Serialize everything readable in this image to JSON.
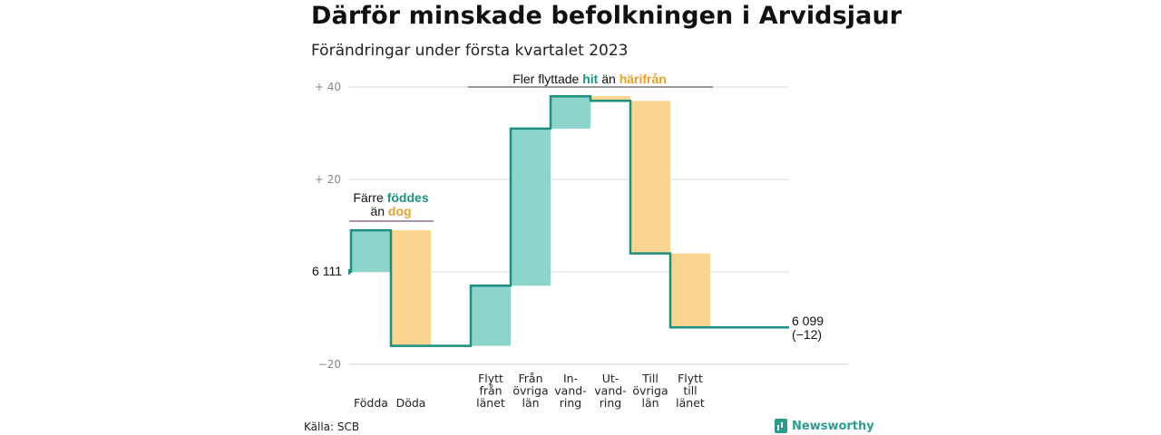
{
  "title": "Därför minskade befolkningen i Arvidsjaur",
  "subtitle": "Förändringar under första kvartalet 2023",
  "source": "Källa: SCB",
  "brand": "Newsworthy",
  "colors": {
    "increase": "#8dd5cc",
    "decrease": "#fad58f",
    "line": "#1b8f80",
    "teal_text": "#1b9484",
    "orange_text": "#e8a02a"
  },
  "start_label": "6 111",
  "end_label": [
    "6 099",
    "(−12)"
  ],
  "annotation_births": {
    "line1_prefix": "Färre ",
    "line1_highlight": "föddes",
    "line2_prefix": "än ",
    "line2_highlight": "dog"
  },
  "annotation_moves": {
    "prefix": "Fler flyttade ",
    "highlight1": "hit",
    "middle": " än ",
    "highlight2": "härifrån"
  },
  "chart_data": {
    "type": "waterfall",
    "start_value": 6111,
    "end_value": 6099,
    "net_change": -12,
    "y_tick_labels": [
      "+ 40",
      "+ 20",
      "−20"
    ],
    "ylim": [
      -20,
      40
    ],
    "steps": [
      {
        "category": [
          "Födda"
        ],
        "change": 9,
        "kind": "increase",
        "group": 0
      },
      {
        "category": [
          "Döda"
        ],
        "change": -25,
        "kind": "decrease",
        "group": 0
      },
      {
        "category": [
          "Flytt",
          "från",
          "länet"
        ],
        "change": 13,
        "kind": "increase",
        "group": 1
      },
      {
        "category": [
          "Från",
          "övriga",
          "län"
        ],
        "change": 34,
        "kind": "increase",
        "group": 1
      },
      {
        "category": [
          "In-",
          "vand-",
          "ring"
        ],
        "change": 7,
        "kind": "increase",
        "group": 1
      },
      {
        "category": [
          "Ut-",
          "vand-",
          "ring"
        ],
        "change": -1,
        "kind": "decrease",
        "group": 1
      },
      {
        "category": [
          "Till",
          "övriga",
          "län"
        ],
        "change": -33,
        "kind": "decrease",
        "group": 1
      },
      {
        "category": [
          "Flytt",
          "till",
          "länet"
        ],
        "change": -16,
        "kind": "decrease",
        "group": 1
      }
    ]
  }
}
